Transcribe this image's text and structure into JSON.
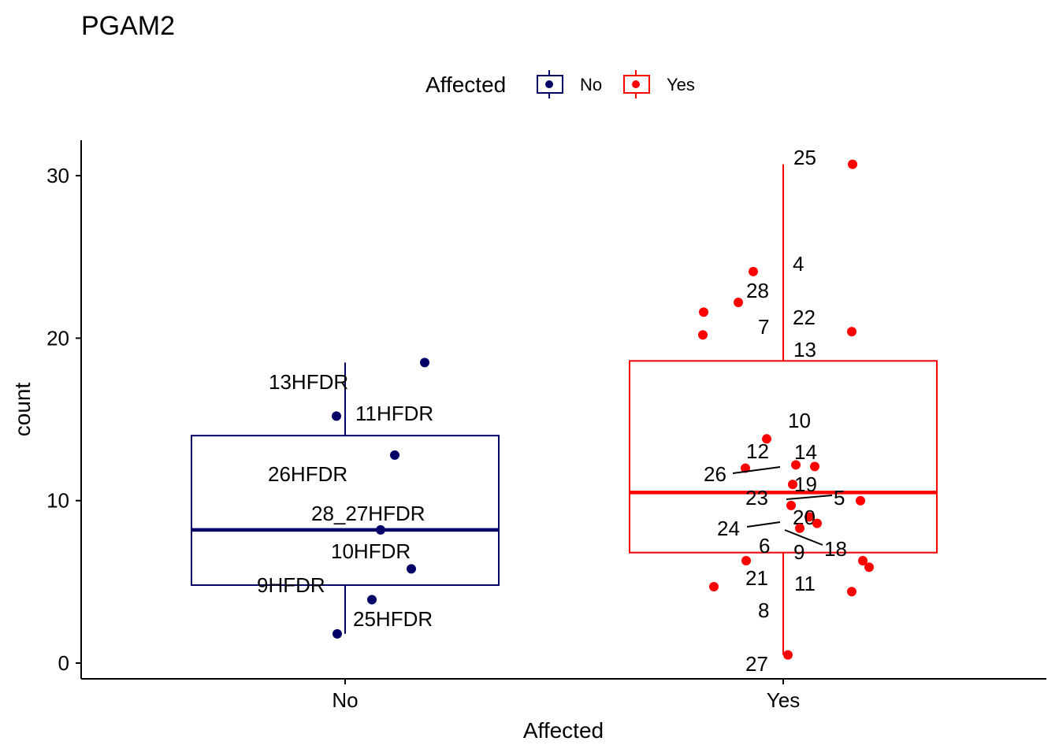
{
  "chart_data": {
    "type": "box",
    "title": "PGAM2",
    "xlabel": "Affected",
    "ylabel": "count",
    "categories": [
      "No",
      "Yes"
    ],
    "ylim": [
      0,
      31
    ],
    "yticks": [
      0,
      10,
      20,
      30
    ],
    "legend": {
      "title": "Affected",
      "position": "top",
      "entries": [
        {
          "name": "No",
          "color": "#000066"
        },
        {
          "name": "Yes",
          "color": "#ff0000"
        }
      ]
    },
    "groups": [
      {
        "name": "No",
        "color": "#000066",
        "box": {
          "min": 1.8,
          "q1": 4.8,
          "median": 8.2,
          "q3": 14.0,
          "max": 18.5
        },
        "points": [
          {
            "label": "13HFDR",
            "y": 15.2
          },
          {
            "label": "11HFDR",
            "y": 18.5
          },
          {
            "label": "26HFDR",
            "y": 12.8
          },
          {
            "label": "28_27HFDR",
            "y": 8.2
          },
          {
            "label": "10HFDR",
            "y": 5.8
          },
          {
            "label": "9HFDR",
            "y": 3.9
          },
          {
            "label": "25HFDR",
            "y": 1.8
          }
        ]
      },
      {
        "name": "Yes",
        "color": "#ff0000",
        "box": {
          "min": 0.5,
          "q1": 6.8,
          "median": 10.5,
          "q3": 18.6,
          "max": 30.7
        },
        "points": [
          {
            "label": "25",
            "y": 30.7
          },
          {
            "label": "4",
            "y": 24.1
          },
          {
            "label": "28",
            "y": 22.2
          },
          {
            "label": "22",
            "y": 21.6
          },
          {
            "label": "7",
            "y": 20.2
          },
          {
            "label": "13",
            "y": 20.4
          },
          {
            "label": "10",
            "y": 13.8
          },
          {
            "label": "12",
            "y": 12.0
          },
          {
            "label": "14",
            "y": 12.2
          },
          {
            "label": "26",
            "y": 12.1
          },
          {
            "label": "19",
            "y": 11.0
          },
          {
            "label": "5",
            "y": 10.0
          },
          {
            "label": "23",
            "y": 9.7
          },
          {
            "label": "20",
            "y": 9.0
          },
          {
            "label": "24",
            "y": 8.3
          },
          {
            "label": "18",
            "y": 8.6
          },
          {
            "label": "6",
            "y": 6.3
          },
          {
            "label": "9",
            "y": 6.3
          },
          {
            "label": "21",
            "y": 4.7
          },
          {
            "label": "11",
            "y": 4.4
          },
          {
            "label": "8",
            "y": 5.9
          },
          {
            "label": "27",
            "y": 0.5
          }
        ]
      }
    ]
  }
}
